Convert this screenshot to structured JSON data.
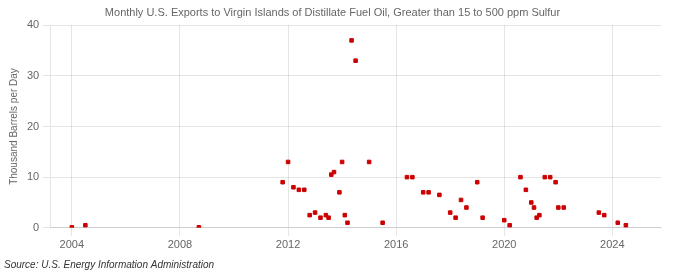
{
  "chart_data": {
    "type": "scatter",
    "title": "Monthly U.S. Exports to Virgin Islands of Distillate Fuel Oil, Greater than 15 to 500 ppm Sulfur",
    "ylabel": "Thousand Barrels per Day",
    "source": "Source: U.S. Energy Information Administration",
    "color": "#cc0000",
    "marker": "square",
    "grid": true,
    "xlim": [
      2003.2,
      2025.8
    ],
    "xticks": [
      2004,
      2008,
      2012,
      2016,
      2020,
      2024
    ],
    "ylim": [
      0,
      40
    ],
    "yticks": [
      0,
      10,
      20,
      30,
      40
    ],
    "x": [
      2004.0,
      2004.5,
      2008.7,
      2011.8,
      2012.0,
      2012.2,
      2012.4,
      2012.6,
      2012.8,
      2013.0,
      2013.2,
      2013.4,
      2013.5,
      2013.6,
      2013.7,
      2013.9,
      2014.0,
      2014.1,
      2014.2,
      2014.35,
      2014.5,
      2015.0,
      2015.5,
      2016.4,
      2016.6,
      2017.0,
      2017.2,
      2017.6,
      2018.0,
      2018.2,
      2018.4,
      2018.6,
      2019.0,
      2019.2,
      2020.0,
      2020.2,
      2020.6,
      2020.8,
      2021.0,
      2021.1,
      2021.2,
      2021.3,
      2021.5,
      2021.7,
      2021.9,
      2022.0,
      2022.2,
      2023.5,
      2023.7,
      2024.2,
      2024.5
    ],
    "values": [
      0.1,
      0.5,
      0.1,
      9.0,
      13.0,
      8.0,
      7.5,
      7.5,
      2.5,
      3.0,
      2.0,
      2.5,
      2.0,
      10.5,
      11.0,
      7.0,
      13.0,
      2.5,
      1.0,
      37.0,
      33.0,
      13.0,
      1.0,
      10.0,
      10.0,
      7.0,
      7.0,
      6.5,
      3.0,
      2.0,
      5.5,
      4.0,
      9.0,
      2.0,
      1.5,
      0.5,
      10.0,
      7.5,
      5.0,
      4.0,
      2.0,
      2.5,
      10.0,
      10.0,
      9.0,
      4.0,
      4.0,
      3.0,
      2.5,
      1.0,
      0.5
    ]
  }
}
